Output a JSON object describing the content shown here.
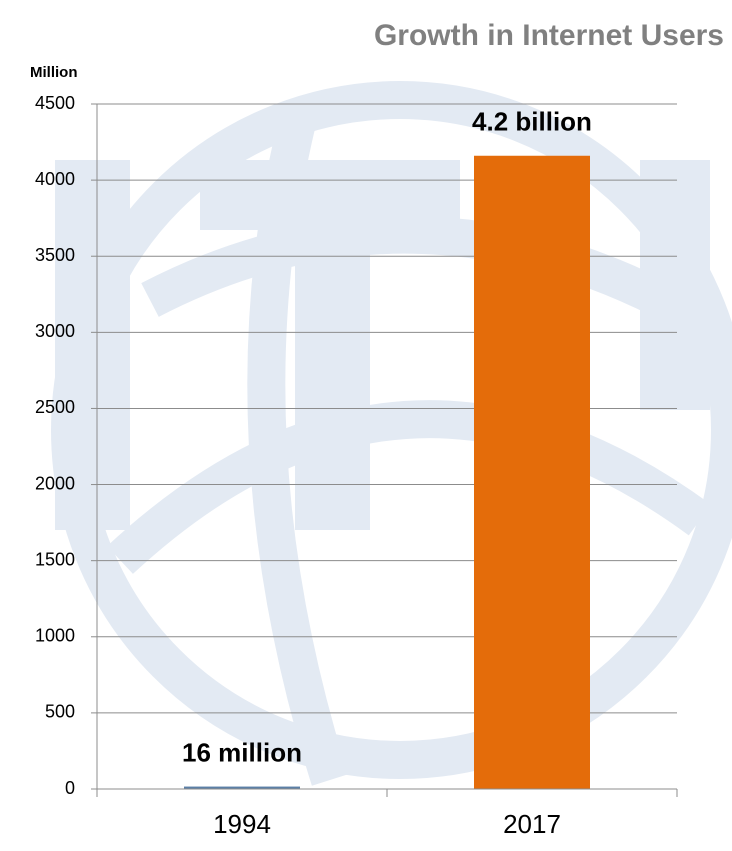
{
  "chart_data": {
    "type": "bar",
    "title": "Growth in Internet Users",
    "y_axis_label": "Million",
    "categories": [
      "1994",
      "2017"
    ],
    "values": [
      16,
      4160
    ],
    "value_labels": [
      "16 million",
      "4.2 billion"
    ],
    "colors": [
      "#5b7fa6",
      "#e46c0a"
    ],
    "ylim": [
      0,
      4500
    ],
    "yticks": [
      0,
      500,
      1000,
      1500,
      2000,
      2500,
      3000,
      3500,
      4000,
      4500
    ],
    "grid": true
  }
}
